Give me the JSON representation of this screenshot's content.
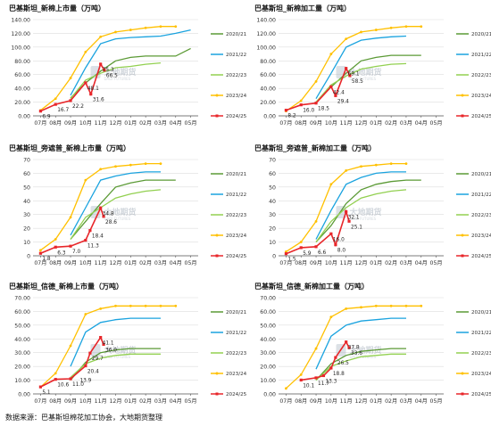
{
  "colors": {
    "2020/21": "#5b9a35",
    "2021/22": "#1aa3df",
    "2022/23": "#92d050",
    "2023/24": "#ffc000",
    "2024/25": "#e8262a",
    "grid": "#dddddd",
    "axis": "#555555"
  },
  "watermark": {
    "name": "大地期货",
    "sub": "DADI FUTURES"
  },
  "source": "数据来源：巴基斯坦棉花加工协会，大地期货整理",
  "chart_data": [
    {
      "type": "line",
      "title": "巴基斯坦_新棉上市量（万吨）",
      "categories": [
        "07月",
        "08月",
        "09月",
        "10月",
        "11月",
        "12月",
        "01月",
        "02月",
        "03月",
        "04月",
        "05月"
      ],
      "ylim": [
        0,
        140
      ],
      "yticks": [
        "0.00",
        "20.00",
        "40.00",
        "60.00",
        "80.00",
        "100.00",
        "120.00",
        "140.00"
      ],
      "legend_position": "right",
      "series": [
        {
          "name": "2020/21",
          "values": [
            null,
            null,
            26,
            48,
            65,
            80,
            85,
            87,
            87,
            87,
            98
          ]
        },
        {
          "name": "2021/22",
          "values": [
            null,
            null,
            30,
            70,
            105,
            112,
            114,
            115,
            116,
            120,
            125
          ]
        },
        {
          "name": "2022/23",
          "values": [
            null,
            null,
            25,
            52,
            62,
            70,
            72,
            75,
            77,
            null,
            null
          ]
        },
        {
          "name": "2023/24",
          "values": [
            8,
            25,
            55,
            93,
            115,
            122,
            125,
            128,
            130,
            130,
            null
          ]
        },
        {
          "name": "2024/25",
          "values": [
            6.9,
            16.7,
            22.2,
            48.1,
            75.3,
            null,
            null,
            null,
            null,
            null,
            null
          ]
        }
      ],
      "red_extra": [
        {
          "x": 3.35,
          "y": 31.6
        },
        {
          "x": 4.25,
          "y": 66.5
        }
      ],
      "data_labels": [
        {
          "x": 0,
          "y": 6.9,
          "text": "6.9"
        },
        {
          "x": 1,
          "y": 16.7,
          "text": "16.7"
        },
        {
          "x": 2,
          "y": 22.2,
          "text": "22.2"
        },
        {
          "x": 3.35,
          "y": 31.6,
          "text": "31.6"
        },
        {
          "x": 3,
          "y": 48.1,
          "text": "48.1"
        },
        {
          "x": 4.25,
          "y": 66.5,
          "text": "66.5"
        },
        {
          "x": 4,
          "y": 75.3,
          "text": "75.3"
        }
      ]
    },
    {
      "type": "line",
      "title": "巴基斯坦_新棉加工量（万吨）",
      "categories": [
        "07月",
        "08月",
        "09月",
        "10月",
        "11月",
        "12月",
        "01月",
        "02月",
        "03月",
        "04月",
        "05月"
      ],
      "ylim": [
        0,
        140
      ],
      "yticks": [
        "0.00",
        "20.00",
        "40.00",
        "60.00",
        "80.00",
        "100.00",
        "120.00",
        "140.00"
      ],
      "legend_position": "right",
      "series": [
        {
          "name": "2020/21",
          "values": [
            null,
            null,
            20,
            42,
            62,
            80,
            85,
            88,
            88,
            88,
            null
          ]
        },
        {
          "name": "2021/22",
          "values": [
            null,
            null,
            25,
            62,
            100,
            110,
            113,
            115,
            116,
            null,
            null
          ]
        },
        {
          "name": "2022/23",
          "values": [
            null,
            null,
            20,
            45,
            58,
            68,
            72,
            75,
            76,
            null,
            null
          ]
        },
        {
          "name": "2023/24",
          "values": [
            7,
            22,
            50,
            90,
            112,
            122,
            125,
            128,
            130,
            130,
            null
          ]
        },
        {
          "name": "2024/25",
          "values": [
            8.2,
            16,
            18.5,
            42.4,
            69.1,
            null,
            null,
            null,
            null,
            null,
            null
          ]
        }
      ],
      "red_extra": [
        {
          "x": 3.3,
          "y": 29.4
        },
        {
          "x": 4.25,
          "y": 58.5
        }
      ],
      "data_labels": [
        {
          "x": 0,
          "y": 8.2,
          "text": "8.2"
        },
        {
          "x": 1,
          "y": 16,
          "text": "16.0"
        },
        {
          "x": 2,
          "y": 18.5,
          "text": "18.5"
        },
        {
          "x": 3.3,
          "y": 29.4,
          "text": "29.4"
        },
        {
          "x": 3,
          "y": 42.4,
          "text": "42.4"
        },
        {
          "x": 4.25,
          "y": 58.5,
          "text": "58.5"
        },
        {
          "x": 4,
          "y": 69.1,
          "text": "69.1"
        }
      ]
    },
    {
      "type": "line",
      "title": "巴基斯坦_旁遮普_新棉上市量（万吨）",
      "categories": [
        "07月",
        "08月",
        "09月",
        "10月",
        "11月",
        "12月",
        "01月",
        "02月",
        "03月",
        "04月",
        "05月"
      ],
      "ylim": [
        0,
        70
      ],
      "yticks": [
        "0",
        "10",
        "20",
        "30",
        "40",
        "50",
        "60",
        "70"
      ],
      "legend_position": "right",
      "series": [
        {
          "name": "2020/21",
          "values": [
            null,
            null,
            12,
            25,
            38,
            50,
            53,
            55,
            55,
            55,
            null
          ]
        },
        {
          "name": "2021/22",
          "values": [
            null,
            null,
            15,
            35,
            55,
            58,
            60,
            61,
            61,
            null,
            null
          ]
        },
        {
          "name": "2022/23",
          "values": [
            null,
            null,
            12,
            28,
            35,
            42,
            45,
            47,
            48,
            null,
            null
          ]
        },
        {
          "name": "2023/24",
          "values": [
            4,
            12,
            28,
            55,
            63,
            65,
            66,
            67,
            67,
            null,
            null
          ]
        },
        {
          "name": "2024/25",
          "values": [
            1.8,
            6.3,
            7,
            11.3,
            34.8,
            null,
            null,
            null,
            null,
            null,
            null
          ]
        }
      ],
      "red_extra": [
        {
          "x": 3.3,
          "y": 18.4
        },
        {
          "x": 4.2,
          "y": 28.6
        }
      ],
      "data_labels": [
        {
          "x": 0,
          "y": 1.8,
          "text": "1.8"
        },
        {
          "x": 1,
          "y": 6.3,
          "text": "6.3"
        },
        {
          "x": 2,
          "y": 7,
          "text": "7.0"
        },
        {
          "x": 3,
          "y": 11.3,
          "text": "11.3"
        },
        {
          "x": 3.3,
          "y": 18.4,
          "text": "18.4"
        },
        {
          "x": 4.2,
          "y": 28.6,
          "text": "28.6"
        },
        {
          "x": 4,
          "y": 34.8,
          "text": "34.8"
        }
      ]
    },
    {
      "type": "line",
      "title": "巴基斯坦_旁遮普_新棉加工量（万吨）",
      "categories": [
        "07月",
        "08月",
        "09月",
        "10月",
        "11月",
        "12月",
        "01月",
        "02月",
        "03月",
        "04月",
        "05月"
      ],
      "ylim": [
        0,
        70
      ],
      "yticks": [
        "0",
        "10",
        "20",
        "30",
        "40",
        "50",
        "60",
        "70"
      ],
      "legend_position": "right",
      "series": [
        {
          "name": "2020/21",
          "values": [
            null,
            null,
            10,
            22,
            38,
            48,
            52,
            54,
            55,
            55,
            null
          ]
        },
        {
          "name": "2021/22",
          "values": [
            null,
            null,
            12,
            33,
            52,
            57,
            60,
            61,
            61,
            null,
            null
          ]
        },
        {
          "name": "2022/23",
          "values": [
            null,
            null,
            10,
            25,
            35,
            42,
            45,
            47,
            48,
            null,
            null
          ]
        },
        {
          "name": "2023/24",
          "values": [
            3,
            10,
            25,
            52,
            62,
            65,
            66,
            67,
            67,
            null,
            null
          ]
        },
        {
          "name": "2024/25",
          "values": [
            1.5,
            5.9,
            6.6,
            16,
            32.1,
            null,
            null,
            null,
            null,
            null,
            null
          ]
        }
      ],
      "red_extra": [
        {
          "x": 3.3,
          "y": 8
        },
        {
          "x": 4.2,
          "y": 25.1
        }
      ],
      "data_labels": [
        {
          "x": 0,
          "y": 1.5,
          "text": "1.5"
        },
        {
          "x": 1,
          "y": 5.9,
          "text": "5.9"
        },
        {
          "x": 2,
          "y": 6.6,
          "text": "6.6"
        },
        {
          "x": 3.3,
          "y": 8,
          "text": "8.0"
        },
        {
          "x": 3,
          "y": 16,
          "text": "16.0"
        },
        {
          "x": 4.2,
          "y": 25.1,
          "text": "25.1"
        },
        {
          "x": 4,
          "y": 32.1,
          "text": "32.1"
        }
      ]
    },
    {
      "type": "line",
      "title": "巴基斯坦_信德_新棉上市量（万吨）",
      "categories": [
        "07月",
        "08月",
        "09月",
        "10月",
        "11月",
        "12月",
        "01月",
        "02月",
        "03月",
        "04月",
        "05月"
      ],
      "ylim": [
        0,
        70
      ],
      "yticks": [
        "0.00",
        "10.00",
        "20.00",
        "30.00",
        "40.00",
        "50.00",
        "60.00",
        "70.00"
      ],
      "legend_position": "right",
      "series": [
        {
          "name": "2020/21",
          "values": [
            null,
            null,
            10,
            23,
            30,
            32,
            33,
            33,
            33,
            null,
            null
          ]
        },
        {
          "name": "2021/22",
          "values": [
            null,
            null,
            20,
            45,
            52,
            54,
            55,
            55,
            55,
            null,
            null
          ]
        },
        {
          "name": "2022/23",
          "values": [
            null,
            null,
            12,
            22,
            26,
            28,
            29,
            29,
            29,
            null,
            null
          ]
        },
        {
          "name": "2023/24",
          "values": [
            5,
            15,
            35,
            58,
            62,
            64,
            64,
            64,
            64,
            64,
            null
          ]
        },
        {
          "name": "2024/25",
          "values": [
            5.1,
            10.6,
            11,
            20.4,
            41.1,
            null,
            null,
            null,
            null,
            null,
            null
          ]
        }
      ],
      "red_extra": [
        {
          "x": 3.3,
          "y": 29.7
        },
        {
          "x": 4.2,
          "y": 36
        }
      ],
      "data_labels": [
        {
          "x": 0,
          "y": 5.1,
          "text": "5.1"
        },
        {
          "x": 1,
          "y": 10.6,
          "text": "10.6"
        },
        {
          "x": 2,
          "y": 11,
          "text": "11.0"
        },
        {
          "x": 2.5,
          "y": 13.9,
          "text": "13.9"
        },
        {
          "x": 3,
          "y": 20.4,
          "text": "20.4"
        },
        {
          "x": 3.3,
          "y": 29.7,
          "text": "29.7"
        },
        {
          "x": 4.2,
          "y": 36,
          "text": "36.0"
        },
        {
          "x": 4,
          "y": 41.1,
          "text": "41.1"
        }
      ]
    },
    {
      "type": "line",
      "title": "巴基斯坦_信德_新棉加工量（万吨）",
      "categories": [
        "07月",
        "08月",
        "09月",
        "10月",
        "11月",
        "12月",
        "01月",
        "02月",
        "03月",
        "04月",
        "05月"
      ],
      "ylim": [
        0,
        70
      ],
      "yticks": [
        "0.00",
        "10.00",
        "20.00",
        "30.00",
        "40.00",
        "50.00",
        "60.00",
        "70.00"
      ],
      "legend_position": "right",
      "series": [
        {
          "name": "2020/21",
          "values": [
            null,
            null,
            10,
            22,
            28,
            31,
            32,
            33,
            33,
            null,
            null
          ]
        },
        {
          "name": "2021/22",
          "values": [
            null,
            null,
            18,
            42,
            50,
            53,
            54,
            55,
            55,
            null,
            null
          ]
        },
        {
          "name": "2022/23",
          "values": [
            null,
            null,
            10,
            20,
            24,
            27,
            28,
            29,
            29,
            null,
            null
          ]
        },
        {
          "name": "2023/24",
          "values": [
            4,
            14,
            33,
            56,
            62,
            63,
            64,
            64,
            64,
            64,
            null
          ]
        },
        {
          "name": "2024/25",
          "values": [
            null,
            10.1,
            11.7,
            18.8,
            37.8,
            null,
            null,
            null,
            null,
            null,
            null
          ]
        }
      ],
      "red_extra": [
        {
          "x": 2.5,
          "y": 13.3
        },
        {
          "x": 3.3,
          "y": 26.5
        },
        {
          "x": 4.2,
          "y": 33.6
        }
      ],
      "data_labels": [
        {
          "x": 1,
          "y": 10.1,
          "text": "10.1"
        },
        {
          "x": 2,
          "y": 11.7,
          "text": "11.7"
        },
        {
          "x": 2.5,
          "y": 13.3,
          "text": "13.3"
        },
        {
          "x": 3,
          "y": 18.8,
          "text": "18.8"
        },
        {
          "x": 3.3,
          "y": 26.5,
          "text": "26.5"
        },
        {
          "x": 4.2,
          "y": 33.6,
          "text": "33.6"
        },
        {
          "x": 4,
          "y": 37.8,
          "text": "37.8"
        }
      ]
    }
  ]
}
